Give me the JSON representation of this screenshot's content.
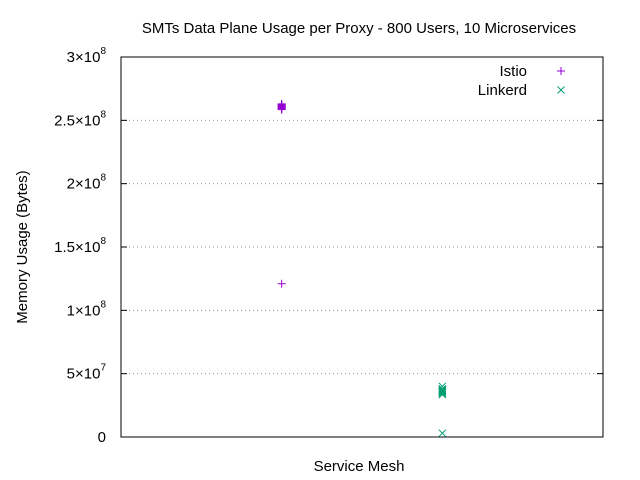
{
  "chart_data": {
    "type": "scatter",
    "title": "SMTs Data Plane Usage per Proxy - 800 Users, 10 Microservices",
    "xlabel": "Service Mesh",
    "ylabel": "Memory Usage (Bytes)",
    "ylim": [
      0,
      300000000
    ],
    "grid": "horizontal-dotted",
    "legend_position": "top-right",
    "y_ticks": [
      {
        "value": 0,
        "mantissa": "0",
        "exponent": ""
      },
      {
        "value": 50000000,
        "mantissa": "5×10",
        "exponent": "7"
      },
      {
        "value": 100000000,
        "mantissa": "1×10",
        "exponent": "8"
      },
      {
        "value": 150000000,
        "mantissa": "1.5×10",
        "exponent": "8"
      },
      {
        "value": 200000000,
        "mantissa": "2×10",
        "exponent": "8"
      },
      {
        "value": 250000000,
        "mantissa": "2.5×10",
        "exponent": "8"
      },
      {
        "value": 300000000,
        "mantissa": "3×10",
        "exponent": "8"
      }
    ],
    "series": [
      {
        "name": "Istio",
        "marker": "plus",
        "color": "#9400d3",
        "x": 1,
        "values": [
          259000000,
          260000000,
          261000000,
          262000000,
          263000000,
          258500000,
          261500000,
          260500000,
          259500000,
          262500000,
          121000000
        ]
      },
      {
        "name": "Linkerd",
        "marker": "cross",
        "color": "#009e73",
        "x": 2,
        "values": [
          40000000,
          38000000,
          37000000,
          36000000,
          35000000,
          34000000,
          36500000,
          37500000,
          35500000,
          33500000,
          3000000
        ]
      }
    ],
    "x_range": [
      0,
      3
    ]
  }
}
